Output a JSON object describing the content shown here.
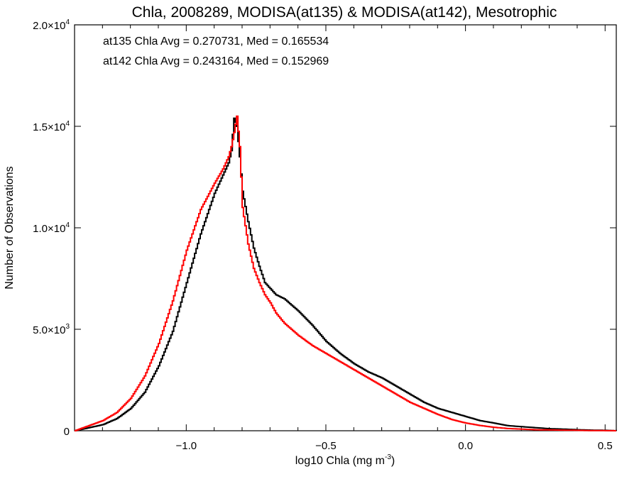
{
  "chart_data": {
    "type": "line",
    "title": "Chla, 2008289, MODISA(at135) & MODISA(at142), Mesotrophic",
    "xlabel": "log10 Chla (mg m",
    "xlabel_sup": "-3",
    "xlabel_end": ")",
    "ylabel": "Number of Observations",
    "xlim": [
      -1.4,
      0.54
    ],
    "ylim": [
      0,
      20000
    ],
    "x_ticks": [
      -1.0,
      -0.5,
      0.0,
      0.5
    ],
    "x_tick_labels": [
      "−1.0",
      "−0.5",
      "0.0",
      "0.5"
    ],
    "y_ticks": [
      {
        "value": 0,
        "mant": "0",
        "exp": ""
      },
      {
        "value": 5000,
        "mant": "5.0×10",
        "exp": "3"
      },
      {
        "value": 10000,
        "mant": "1.0×10",
        "exp": "4"
      },
      {
        "value": 15000,
        "mant": "1.5×10",
        "exp": "4"
      },
      {
        "value": 20000,
        "mant": "2.0×10",
        "exp": "4"
      }
    ],
    "annotations": [
      {
        "text": "at135 Chla Avg = 0.270731, Med = 0.165534",
        "color": "#000000"
      },
      {
        "text": "at142 Chla Avg = 0.243164, Med = 0.152969",
        "color": "#ff0000"
      }
    ],
    "series": [
      {
        "color": "#000000",
        "x": [
          -1.4,
          -1.35,
          -1.3,
          -1.25,
          -1.2,
          -1.15,
          -1.1,
          -1.05,
          -1.0,
          -0.95,
          -0.9,
          -0.87,
          -0.85,
          -0.84,
          -0.83,
          -0.82,
          -0.81,
          -0.8,
          -0.78,
          -0.76,
          -0.74,
          -0.72,
          -0.7,
          -0.68,
          -0.65,
          -0.6,
          -0.55,
          -0.5,
          -0.45,
          -0.4,
          -0.35,
          -0.3,
          -0.25,
          -0.2,
          -0.15,
          -0.1,
          -0.05,
          0.0,
          0.05,
          0.1,
          0.15,
          0.2,
          0.25,
          0.3,
          0.35,
          0.4,
          0.45,
          0.5,
          0.54
        ],
        "y": [
          0,
          150,
          300,
          600,
          1100,
          1900,
          3200,
          4900,
          7300,
          9700,
          11700,
          12600,
          13200,
          13800,
          15400,
          15000,
          13500,
          11800,
          10300,
          9000,
          8100,
          7300,
          7000,
          6700,
          6500,
          5900,
          5200,
          4400,
          3800,
          3300,
          2900,
          2600,
          2200,
          1800,
          1400,
          1100,
          900,
          700,
          500,
          380,
          250,
          200,
          150,
          100,
          80,
          50,
          30,
          20,
          0
        ]
      },
      {
        "color": "#ff0000",
        "x": [
          -1.4,
          -1.35,
          -1.3,
          -1.25,
          -1.2,
          -1.15,
          -1.1,
          -1.05,
          -1.0,
          -0.95,
          -0.9,
          -0.87,
          -0.85,
          -0.84,
          -0.83,
          -0.82,
          -0.81,
          -0.8,
          -0.78,
          -0.76,
          -0.74,
          -0.72,
          -0.7,
          -0.68,
          -0.65,
          -0.6,
          -0.55,
          -0.5,
          -0.45,
          -0.4,
          -0.35,
          -0.3,
          -0.25,
          -0.2,
          -0.15,
          -0.1,
          -0.05,
          0.0,
          0.05,
          0.1,
          0.15,
          0.2,
          0.25,
          0.3,
          0.35,
          0.4,
          0.45,
          0.5,
          0.54
        ],
        "y": [
          0,
          250,
          500,
          900,
          1600,
          2700,
          4300,
          6400,
          8900,
          10900,
          12200,
          12900,
          13500,
          14000,
          14700,
          15500,
          14000,
          11000,
          9200,
          8000,
          7300,
          6700,
          6300,
          5800,
          5300,
          4700,
          4200,
          3800,
          3400,
          3000,
          2600,
          2200,
          1800,
          1400,
          1100,
          800,
          550,
          380,
          260,
          170,
          110,
          80,
          50,
          40,
          30,
          20,
          10,
          5,
          0
        ]
      }
    ]
  }
}
